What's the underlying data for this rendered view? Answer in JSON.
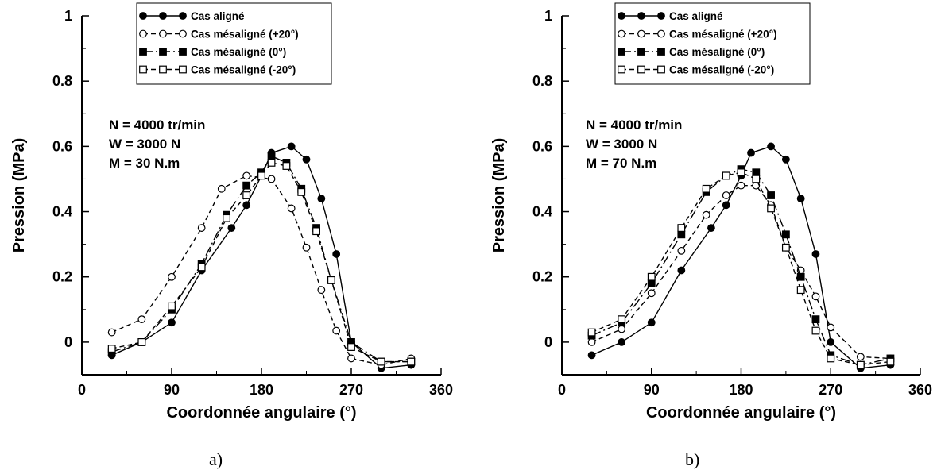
{
  "chart_data": [
    {
      "type": "line",
      "caption": "a)",
      "xlabel": "Coordonnée angulaire (°)",
      "ylabel": "Pression (MPa)",
      "xlim": [
        0,
        360
      ],
      "ylim": [
        -0.1,
        1
      ],
      "xticks": [
        "0",
        "90",
        "180",
        "270",
        "360"
      ],
      "yticks": [
        "0",
        "0.2",
        "0.4",
        "0.6",
        "0.8",
        "1"
      ],
      "legend_position": "top-center",
      "annotations": [
        "N = 4000 tr/min",
        "W = 3000 N",
        "M = 30 N.m"
      ],
      "series": [
        {
          "name": "Cas aligné",
          "marker": "filled-circle",
          "line": "solid",
          "x": [
            30,
            60,
            90,
            120,
            150,
            165,
            180,
            190,
            210,
            225,
            240,
            255,
            270,
            300,
            330
          ],
          "y": [
            -0.04,
            0.0,
            0.06,
            0.22,
            0.35,
            0.42,
            0.51,
            0.58,
            0.6,
            0.56,
            0.44,
            0.27,
            0.0,
            -0.08,
            -0.07
          ]
        },
        {
          "name": "Cas mésaligné (+20°)",
          "marker": "open-circle",
          "line": "dashed",
          "x": [
            30,
            60,
            90,
            120,
            140,
            165,
            190,
            210,
            225,
            240,
            255,
            270,
            300,
            330
          ],
          "y": [
            0.03,
            0.07,
            0.2,
            0.35,
            0.47,
            0.51,
            0.5,
            0.41,
            0.29,
            0.16,
            0.035,
            -0.05,
            -0.07,
            -0.05
          ]
        },
        {
          "name": "Cas mésaligné (0°)",
          "marker": "filled-square",
          "line": "dash-dot",
          "x": [
            30,
            60,
            90,
            120,
            145,
            165,
            180,
            190,
            205,
            220,
            235,
            250,
            270,
            300,
            330
          ],
          "y": [
            -0.03,
            0.0,
            0.1,
            0.24,
            0.39,
            0.48,
            0.52,
            0.57,
            0.55,
            0.47,
            0.35,
            0.19,
            0.0,
            -0.06,
            -0.06
          ]
        },
        {
          "name": "Cas mésaligné (-20°)",
          "marker": "open-square",
          "line": "dashed",
          "x": [
            30,
            60,
            90,
            120,
            145,
            165,
            180,
            190,
            205,
            220,
            235,
            250,
            270,
            300,
            330
          ],
          "y": [
            -0.02,
            0.0,
            0.11,
            0.23,
            0.38,
            0.45,
            0.51,
            0.55,
            0.54,
            0.46,
            0.34,
            0.19,
            -0.015,
            -0.06,
            -0.06
          ]
        }
      ]
    },
    {
      "type": "line",
      "caption": "b)",
      "xlabel": "Coordonnée angulaire (°)",
      "ylabel": "Pression (MPa)",
      "xlim": [
        0,
        360
      ],
      "ylim": [
        -0.1,
        1
      ],
      "xticks": [
        "0",
        "90",
        "180",
        "270",
        "360"
      ],
      "yticks": [
        "0",
        "0.2",
        "0.4",
        "0.6",
        "0.8",
        "1"
      ],
      "legend_position": "top-center",
      "annotations": [
        "N = 4000 tr/min",
        "W = 3000 N",
        "M = 70 N.m"
      ],
      "series": [
        {
          "name": "Cas aligné",
          "marker": "filled-circle",
          "line": "solid",
          "x": [
            30,
            60,
            90,
            120,
            150,
            165,
            180,
            190,
            210,
            225,
            240,
            255,
            270,
            300,
            330
          ],
          "y": [
            -0.04,
            0.0,
            0.06,
            0.22,
            0.35,
            0.42,
            0.51,
            0.58,
            0.6,
            0.56,
            0.44,
            0.27,
            0.0,
            -0.08,
            -0.07
          ]
        },
        {
          "name": "Cas mésaligné (+20°)",
          "marker": "open-circle",
          "line": "dashed",
          "x": [
            30,
            60,
            90,
            120,
            145,
            165,
            180,
            195,
            210,
            225,
            240,
            255,
            270,
            300,
            330
          ],
          "y": [
            0.0,
            0.04,
            0.15,
            0.28,
            0.39,
            0.45,
            0.48,
            0.48,
            0.42,
            0.29,
            0.22,
            0.14,
            0.045,
            -0.045,
            -0.05
          ]
        },
        {
          "name": "Cas mésaligné (0°)",
          "marker": "filled-square",
          "line": "dash-dot",
          "x": [
            30,
            60,
            90,
            120,
            145,
            165,
            180,
            195,
            210,
            225,
            240,
            255,
            270,
            300,
            330
          ],
          "y": [
            0.02,
            0.06,
            0.18,
            0.33,
            0.46,
            0.51,
            0.53,
            0.52,
            0.45,
            0.33,
            0.2,
            0.07,
            -0.04,
            -0.07,
            -0.05
          ]
        },
        {
          "name": "Cas mésaligné (-20°)",
          "marker": "open-square",
          "line": "dashed",
          "x": [
            30,
            60,
            90,
            120,
            145,
            165,
            180,
            195,
            210,
            225,
            240,
            255,
            270,
            300,
            330
          ],
          "y": [
            0.03,
            0.07,
            0.2,
            0.35,
            0.47,
            0.51,
            0.52,
            0.5,
            0.41,
            0.29,
            0.16,
            0.035,
            -0.05,
            -0.07,
            -0.06
          ]
        }
      ]
    }
  ]
}
